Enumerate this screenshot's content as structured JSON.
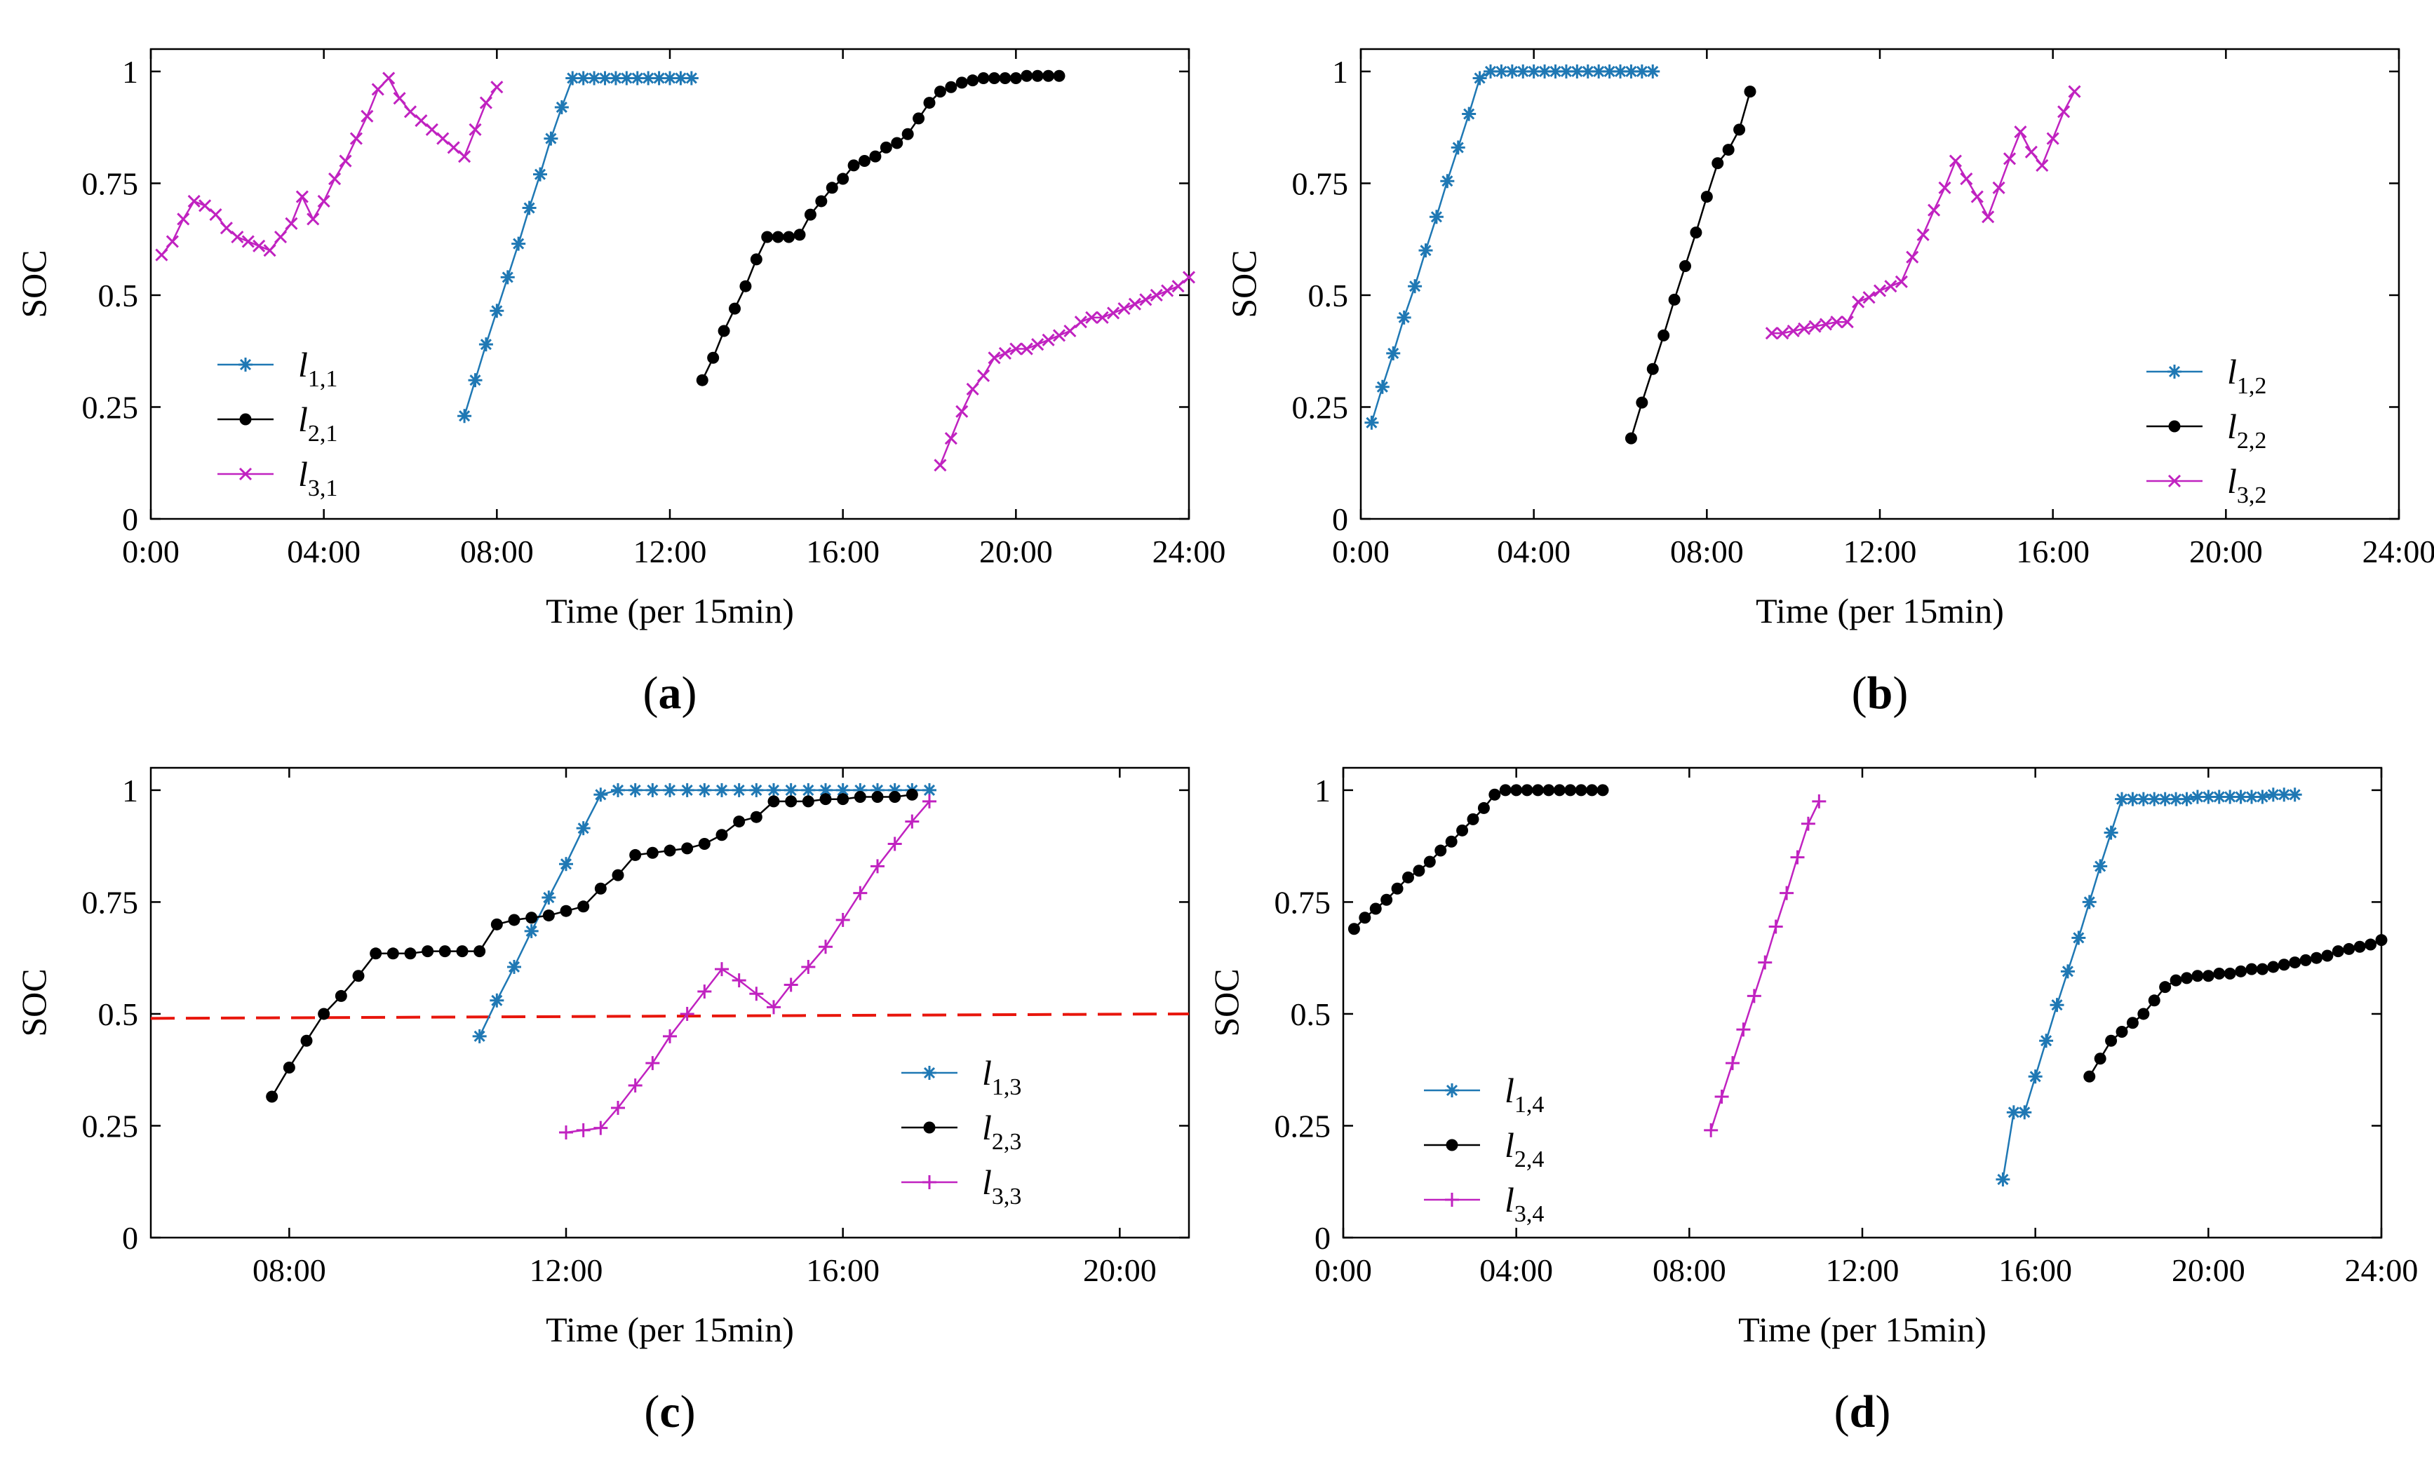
{
  "figure": {
    "colors": {
      "series1": "#1f78b4",
      "series2": "#000000",
      "series3": "#c022c0",
      "threshold": "#e8160c"
    }
  },
  "chart_data": [
    {
      "panel_label": "a",
      "type": "line",
      "xlabel": "Time (per 15min)",
      "ylabel": "SOC",
      "xlim": [
        0,
        24
      ],
      "ylim": [
        0,
        1.05
      ],
      "xticks": [
        0,
        4,
        8,
        12,
        16,
        20,
        24
      ],
      "xtick_labels": [
        "0:00",
        "04:00",
        "08:00",
        "12:00",
        "16:00",
        "20:00",
        "24:00"
      ],
      "yticks": [
        0,
        0.25,
        0.5,
        0.75,
        1
      ],
      "ytick_labels": [
        "0",
        "0.25",
        "0.5",
        "0.75",
        "1"
      ],
      "legend_position": "lower-left",
      "series": [
        {
          "name": "l1,1",
          "label_main": "l",
          "label_sub": "1,1",
          "marker": "star",
          "x": [
            7.25,
            7.5,
            7.75,
            8,
            8.25,
            8.5,
            8.75,
            9,
            9.25,
            9.5,
            9.75,
            10,
            10.25,
            10.5,
            10.75,
            11,
            11.25,
            11.5,
            11.75,
            12,
            12.25,
            12.5
          ],
          "y": [
            0.23,
            0.31,
            0.39,
            0.465,
            0.54,
            0.615,
            0.695,
            0.77,
            0.85,
            0.92,
            0.985,
            0.985,
            0.985,
            0.985,
            0.985,
            0.985,
            0.985,
            0.985,
            0.985,
            0.985,
            0.985,
            0.985
          ]
        },
        {
          "name": "l2,1",
          "label_main": "l",
          "label_sub": "2,1",
          "marker": "dot",
          "x": [
            12.75,
            13,
            13.25,
            13.5,
            13.75,
            14,
            14.25,
            14.5,
            14.75,
            15,
            15.25,
            15.5,
            15.75,
            16,
            16.25,
            16.5,
            16.75,
            17,
            17.25,
            17.5,
            17.75,
            18,
            18.25,
            18.5,
            18.75,
            19,
            19.25,
            19.5,
            19.75,
            20,
            20.25,
            20.5,
            20.75,
            21
          ],
          "y": [
            0.31,
            0.36,
            0.42,
            0.47,
            0.52,
            0.58,
            0.63,
            0.63,
            0.63,
            0.635,
            0.68,
            0.71,
            0.74,
            0.76,
            0.79,
            0.8,
            0.81,
            0.83,
            0.84,
            0.86,
            0.895,
            0.93,
            0.955,
            0.965,
            0.975,
            0.98,
            0.985,
            0.985,
            0.985,
            0.985,
            0.99,
            0.99,
            0.99,
            0.99
          ]
        },
        {
          "name": "l3,1",
          "label_main": "l",
          "label_sub": "3,1",
          "marker": "x",
          "x": [
            0.25,
            0.5,
            0.75,
            1,
            1.25,
            1.5,
            1.75,
            2,
            2.25,
            2.5,
            2.75,
            3,
            3.25,
            3.5,
            3.75,
            4,
            4.25,
            4.5,
            4.75,
            5,
            5.25,
            5.5,
            5.75,
            6,
            6.25,
            6.5,
            6.75,
            7,
            7.25,
            7.5,
            7.75,
            8
          ],
          "y": [
            0.59,
            0.62,
            0.67,
            0.71,
            0.7,
            0.68,
            0.65,
            0.63,
            0.62,
            0.61,
            0.6,
            0.63,
            0.66,
            0.72,
            0.67,
            0.71,
            0.76,
            0.8,
            0.85,
            0.9,
            0.96,
            0.985,
            0.94,
            0.91,
            0.89,
            0.87,
            0.85,
            0.83,
            0.81,
            0.87,
            0.93,
            0.965
          ]
        },
        {
          "name": "l3,1-evening",
          "marker": "x",
          "legend": false,
          "x": [
            18.25,
            18.5,
            18.75,
            19,
            19.25,
            19.5,
            19.75,
            20,
            20.25,
            20.5,
            20.75,
            21,
            21.25,
            21.5,
            21.75,
            22,
            22.25,
            22.5,
            22.75,
            23,
            23.25,
            23.5,
            23.75,
            24
          ],
          "y": [
            0.12,
            0.18,
            0.24,
            0.29,
            0.32,
            0.36,
            0.37,
            0.38,
            0.38,
            0.39,
            0.4,
            0.41,
            0.42,
            0.44,
            0.45,
            0.45,
            0.46,
            0.47,
            0.48,
            0.49,
            0.5,
            0.51,
            0.52,
            0.54
          ]
        }
      ]
    },
    {
      "panel_label": "b",
      "type": "line",
      "xlabel": "Time (per 15min)",
      "ylabel": "SOC",
      "xlim": [
        0,
        24
      ],
      "ylim": [
        0,
        1.05
      ],
      "xticks": [
        0,
        4,
        8,
        12,
        16,
        20,
        24
      ],
      "xtick_labels": [
        "0:00",
        "04:00",
        "08:00",
        "12:00",
        "16:00",
        "20:00",
        "24:00"
      ],
      "yticks": [
        0,
        0.25,
        0.5,
        0.75,
        1
      ],
      "ytick_labels": [
        "0",
        "0.25",
        "0.5",
        "0.75",
        "1"
      ],
      "legend_position": "lower-right",
      "series": [
        {
          "name": "l1,2",
          "label_main": "l",
          "label_sub": "1,2",
          "marker": "star",
          "x": [
            0.25,
            0.5,
            0.75,
            1,
            1.25,
            1.5,
            1.75,
            2,
            2.25,
            2.5,
            2.75,
            3,
            3.25,
            3.5,
            3.75,
            4,
            4.25,
            4.5,
            4.75,
            5,
            5.25,
            5.5,
            5.75,
            6,
            6.25,
            6.5,
            6.75
          ],
          "y": [
            0.215,
            0.295,
            0.37,
            0.45,
            0.52,
            0.6,
            0.675,
            0.755,
            0.83,
            0.905,
            0.985,
            1,
            1,
            1,
            1,
            1,
            1,
            1,
            1,
            1,
            1,
            1,
            1,
            1,
            1,
            1,
            1
          ]
        },
        {
          "name": "l2,2",
          "label_main": "l",
          "label_sub": "2,2",
          "marker": "dot",
          "x": [
            6.25,
            6.5,
            6.75,
            7,
            7.25,
            7.5,
            7.75,
            8,
            8.25,
            8.5,
            8.75,
            9
          ],
          "y": [
            0.18,
            0.26,
            0.335,
            0.41,
            0.49,
            0.565,
            0.64,
            0.72,
            0.795,
            0.825,
            0.87,
            0.955
          ]
        },
        {
          "name": "l3,2",
          "label_main": "l",
          "label_sub": "3,2",
          "marker": "x",
          "x": [
            9.5,
            9.75,
            10,
            10.25,
            10.5,
            10.75,
            11,
            11.25,
            11.5,
            11.75,
            12,
            12.25,
            12.5,
            12.75,
            13,
            13.25,
            13.5,
            13.75,
            14,
            14.25,
            14.5,
            14.75,
            15,
            15.25,
            15.5,
            15.75,
            16,
            16.25,
            16.5
          ],
          "y": [
            0.415,
            0.415,
            0.42,
            0.425,
            0.43,
            0.435,
            0.44,
            0.44,
            0.485,
            0.495,
            0.51,
            0.52,
            0.53,
            0.585,
            0.635,
            0.69,
            0.74,
            0.8,
            0.76,
            0.72,
            0.675,
            0.74,
            0.805,
            0.865,
            0.82,
            0.79,
            0.85,
            0.91,
            0.955
          ]
        }
      ]
    },
    {
      "panel_label": "c",
      "type": "line",
      "xlabel": "Time (per 15min)",
      "ylabel": "SOC",
      "xlim": [
        6,
        21
      ],
      "ylim": [
        0,
        1.05
      ],
      "xticks": [
        8,
        12,
        16,
        20
      ],
      "xtick_labels": [
        "08:00",
        "12:00",
        "16:00",
        "20:00"
      ],
      "yticks": [
        0,
        0.25,
        0.5,
        0.75,
        1
      ],
      "ytick_labels": [
        "0",
        "0.25",
        "0.5",
        "0.75",
        "1"
      ],
      "legend_position": "lower-right",
      "threshold": {
        "y_start": 0.49,
        "y_end": 0.5
      },
      "series": [
        {
          "name": "l1,3",
          "label_main": "l",
          "label_sub": "1,3",
          "marker": "star",
          "x": [
            10.75,
            11,
            11.25,
            11.5,
            11.75,
            12,
            12.25,
            12.5,
            12.75,
            13,
            13.25,
            13.5,
            13.75,
            14,
            14.25,
            14.5,
            14.75,
            15,
            15.25,
            15.5,
            15.75,
            16,
            16.25,
            16.5,
            16.75,
            17,
            17.25
          ],
          "y": [
            0.45,
            0.53,
            0.605,
            0.685,
            0.76,
            0.835,
            0.915,
            0.99,
            1,
            1,
            1,
            1,
            1,
            1,
            1,
            1,
            1,
            1,
            1,
            1,
            1,
            1,
            1,
            1,
            1,
            1,
            1
          ]
        },
        {
          "name": "l2,3",
          "label_main": "l",
          "label_sub": "2,3",
          "marker": "dot",
          "x": [
            7.75,
            8,
            8.25,
            8.5,
            8.75,
            9,
            9.25,
            9.5,
            9.75,
            10,
            10.25,
            10.5,
            10.75,
            11,
            11.25,
            11.5,
            11.75,
            12,
            12.25,
            12.5,
            12.75,
            13,
            13.25,
            13.5,
            13.75,
            14,
            14.25,
            14.5,
            14.75,
            15,
            15.25,
            15.5,
            15.75,
            16,
            16.25,
            16.5,
            16.75,
            17
          ],
          "y": [
            0.315,
            0.38,
            0.44,
            0.5,
            0.54,
            0.585,
            0.635,
            0.635,
            0.635,
            0.64,
            0.64,
            0.64,
            0.64,
            0.7,
            0.71,
            0.715,
            0.72,
            0.73,
            0.74,
            0.78,
            0.81,
            0.855,
            0.86,
            0.865,
            0.87,
            0.88,
            0.9,
            0.93,
            0.94,
            0.975,
            0.975,
            0.975,
            0.98,
            0.98,
            0.985,
            0.985,
            0.985,
            0.99
          ]
        },
        {
          "name": "l3,3",
          "label_main": "l",
          "label_sub": "3,3",
          "marker": "plus",
          "x": [
            12,
            12.25,
            12.5,
            12.75,
            13,
            13.25,
            13.5,
            13.75,
            14,
            14.25,
            14.5,
            14.75,
            15,
            15.25,
            15.5,
            15.75,
            16,
            16.25,
            16.5,
            16.75,
            17,
            17.25
          ],
          "y": [
            0.235,
            0.24,
            0.245,
            0.29,
            0.34,
            0.39,
            0.45,
            0.5,
            0.55,
            0.6,
            0.575,
            0.545,
            0.515,
            0.565,
            0.605,
            0.65,
            0.71,
            0.77,
            0.83,
            0.88,
            0.93,
            0.975
          ]
        }
      ]
    },
    {
      "panel_label": "d",
      "type": "line",
      "xlabel": "Time (per 15min)",
      "ylabel": "SOC",
      "xlim": [
        0,
        24
      ],
      "ylim": [
        0,
        1.05
      ],
      "xticks": [
        0,
        4,
        8,
        12,
        16,
        20,
        24
      ],
      "xtick_labels": [
        "0:00",
        "04:00",
        "08:00",
        "12:00",
        "16:00",
        "20:00",
        "24:00"
      ],
      "yticks": [
        0,
        0.25,
        0.5,
        0.75,
        1
      ],
      "ytick_labels": [
        "0",
        "0.25",
        "0.5",
        "0.75",
        "1"
      ],
      "legend_position": "lower-left",
      "series": [
        {
          "name": "l1,4",
          "label_main": "l",
          "label_sub": "1,4",
          "marker": "star",
          "x": [
            15.25,
            15.5,
            15.75,
            16,
            16.25,
            16.5,
            16.75,
            17,
            17.25,
            17.5,
            17.75,
            18,
            18.25,
            18.5,
            18.75,
            19,
            19.25,
            19.5,
            19.75,
            20,
            20.25,
            20.5,
            20.75,
            21,
            21.25,
            21.5,
            21.75,
            22
          ],
          "y": [
            0.13,
            0.28,
            0.28,
            0.36,
            0.44,
            0.52,
            0.595,
            0.67,
            0.75,
            0.83,
            0.905,
            0.98,
            0.98,
            0.98,
            0.98,
            0.98,
            0.98,
            0.98,
            0.985,
            0.985,
            0.985,
            0.985,
            0.985,
            0.985,
            0.985,
            0.99,
            0.99,
            0.99
          ]
        },
        {
          "name": "l2,4",
          "label_main": "l",
          "label_sub": "2,4",
          "marker": "dot",
          "x": [
            0.25,
            0.5,
            0.75,
            1,
            1.25,
            1.5,
            1.75,
            2,
            2.25,
            2.5,
            2.75,
            3,
            3.25,
            3.5,
            3.75,
            4,
            4.25,
            4.5,
            4.75,
            5,
            5.25,
            5.5,
            5.75,
            6
          ],
          "y": [
            0.69,
            0.715,
            0.735,
            0.755,
            0.78,
            0.805,
            0.82,
            0.84,
            0.865,
            0.885,
            0.91,
            0.935,
            0.96,
            0.99,
            1,
            1,
            1,
            1,
            1,
            1,
            1,
            1,
            1,
            1
          ]
        },
        {
          "name": "l2,4-evening",
          "marker": "dot",
          "legend": false,
          "x": [
            17.25,
            17.5,
            17.75,
            18,
            18.25,
            18.5,
            18.75,
            19,
            19.25,
            19.5,
            19.75,
            20,
            20.25,
            20.5,
            20.75,
            21,
            21.25,
            21.5,
            21.75,
            22,
            22.25,
            22.5,
            22.75,
            23,
            23.25,
            23.5,
            23.75,
            24
          ],
          "y": [
            0.36,
            0.4,
            0.44,
            0.46,
            0.48,
            0.5,
            0.53,
            0.56,
            0.575,
            0.58,
            0.585,
            0.585,
            0.59,
            0.59,
            0.595,
            0.6,
            0.6,
            0.605,
            0.61,
            0.615,
            0.62,
            0.625,
            0.63,
            0.64,
            0.645,
            0.65,
            0.655,
            0.665
          ]
        },
        {
          "name": "l3,4",
          "label_main": "l",
          "label_sub": "3,4",
          "marker": "plus",
          "x": [
            8.5,
            8.75,
            9,
            9.25,
            9.5,
            9.75,
            10,
            10.25,
            10.5,
            10.75,
            11
          ],
          "y": [
            0.24,
            0.315,
            0.39,
            0.465,
            0.54,
            0.615,
            0.695,
            0.77,
            0.85,
            0.925,
            0.975
          ]
        }
      ]
    }
  ]
}
